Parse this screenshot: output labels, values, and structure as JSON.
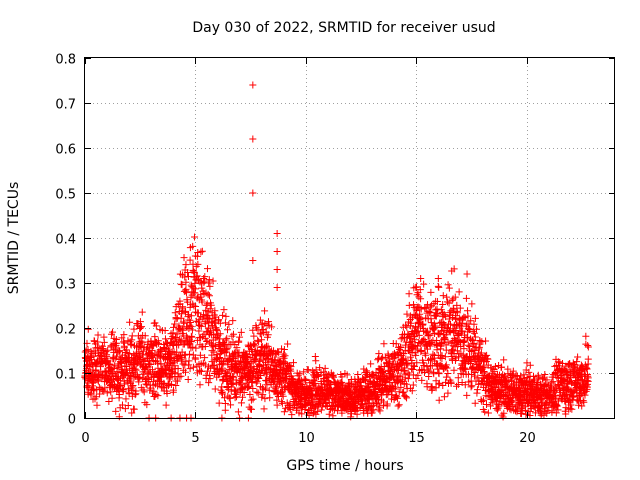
{
  "chart_data": {
    "type": "scatter",
    "title": "Day 030 of 2022, SRMTID for receiver usud",
    "xlabel": "GPS time / hours",
    "ylabel": "SRMTID / TECUs",
    "xlim": [
      0,
      24
    ],
    "ylim": [
      0,
      0.8
    ],
    "x_ticks": [
      "0",
      "5",
      "10",
      "15",
      "20"
    ],
    "y_ticks": [
      "0",
      "0.1",
      "0.2",
      "0.3",
      "0.4",
      "0.5",
      "0.6",
      "0.7",
      "0.8"
    ],
    "grid": true,
    "marker": "+",
    "color": "#ff0000",
    "sampling_interval_hours": 0.0167,
    "profile": {
      "description": "typical SRMTID level (TECU) vs GPS hour; individual points scatter around this",
      "x": [
        0,
        1,
        2,
        2.5,
        3,
        3.5,
        4,
        4.5,
        5,
        5.5,
        6,
        6.5,
        7,
        7.5,
        8,
        8.5,
        9,
        9.5,
        10,
        10.5,
        11,
        11.5,
        12,
        12.5,
        13,
        13.5,
        14,
        14.5,
        15,
        15.5,
        16,
        16.5,
        17,
        17.5,
        18,
        18.5,
        19,
        19.5,
        20,
        20.5,
        21,
        21.5,
        22,
        22.5,
        22.8
      ],
      "y": [
        0.11,
        0.1,
        0.11,
        0.13,
        0.12,
        0.11,
        0.13,
        0.2,
        0.26,
        0.2,
        0.15,
        0.12,
        0.11,
        0.1,
        0.14,
        0.11,
        0.09,
        0.06,
        0.05,
        0.07,
        0.06,
        0.05,
        0.04,
        0.05,
        0.06,
        0.08,
        0.1,
        0.13,
        0.2,
        0.18,
        0.16,
        0.18,
        0.17,
        0.15,
        0.1,
        0.07,
        0.06,
        0.05,
        0.06,
        0.05,
        0.05,
        0.07,
        0.08,
        0.08,
        0.1
      ]
    },
    "notable_points": [
      {
        "x": 7.6,
        "y": 0.74
      },
      {
        "x": 7.6,
        "y": 0.62
      },
      {
        "x": 7.6,
        "y": 0.5
      },
      {
        "x": 7.6,
        "y": 0.35
      },
      {
        "x": 8.7,
        "y": 0.41
      },
      {
        "x": 8.7,
        "y": 0.37
      },
      {
        "x": 8.7,
        "y": 0.33
      },
      {
        "x": 8.7,
        "y": 0.29
      },
      {
        "x": 5.0,
        "y": 0.36
      },
      {
        "x": 5.6,
        "y": 0.3
      },
      {
        "x": 17.3,
        "y": 0.32
      },
      {
        "x": 15.2,
        "y": 0.31
      },
      {
        "x": 16.0,
        "y": 0.31
      },
      {
        "x": 2.4,
        "y": 0.21
      },
      {
        "x": 2.2,
        "y": 0.02
      },
      {
        "x": 2.9,
        "y": 0.0
      },
      {
        "x": 3.2,
        "y": 0.0
      },
      {
        "x": 3.9,
        "y": 0.0
      },
      {
        "x": 4.3,
        "y": 0.0
      },
      {
        "x": 4.6,
        "y": 0.0
      },
      {
        "x": 4.8,
        "y": 0.0
      },
      {
        "x": 6.2,
        "y": 0.0
      },
      {
        "x": 7.0,
        "y": 0.0
      },
      {
        "x": 7.4,
        "y": 0.0
      },
      {
        "x": 7.5,
        "y": 0.02
      }
    ]
  }
}
